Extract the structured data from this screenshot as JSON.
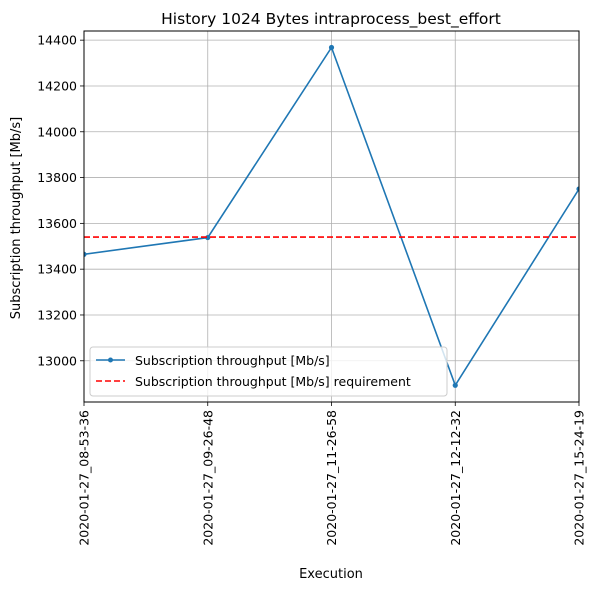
{
  "chart_data": {
    "type": "line",
    "title": "History 1024 Bytes intraprocess_best_effort",
    "xlabel": "Execution",
    "ylabel": "Subscription throughput [Mb/s]",
    "categories": [
      "2020-01-27_08-53-36",
      "2020-01-27_09-26-48",
      "2020-01-27_11-26-58",
      "2020-01-27_12-12-32",
      "2020-01-27_15-24-19"
    ],
    "ylim": [
      12820,
      14440
    ],
    "yticks": [
      13000,
      13200,
      13400,
      13600,
      13800,
      14000,
      14200,
      14400
    ],
    "grid": true,
    "legend_position": "lower-left",
    "series": [
      {
        "name": "Subscription throughput [Mb/s]",
        "color": "#1f77b4",
        "style": "solid-with-markers",
        "values": [
          13465,
          13538,
          14368,
          12893,
          13750
        ]
      },
      {
        "name": "Subscription throughput [Mb/s] requirement",
        "color": "#ff0000",
        "style": "dashed",
        "values": [
          13540,
          13540,
          13540,
          13540,
          13540
        ]
      }
    ]
  }
}
